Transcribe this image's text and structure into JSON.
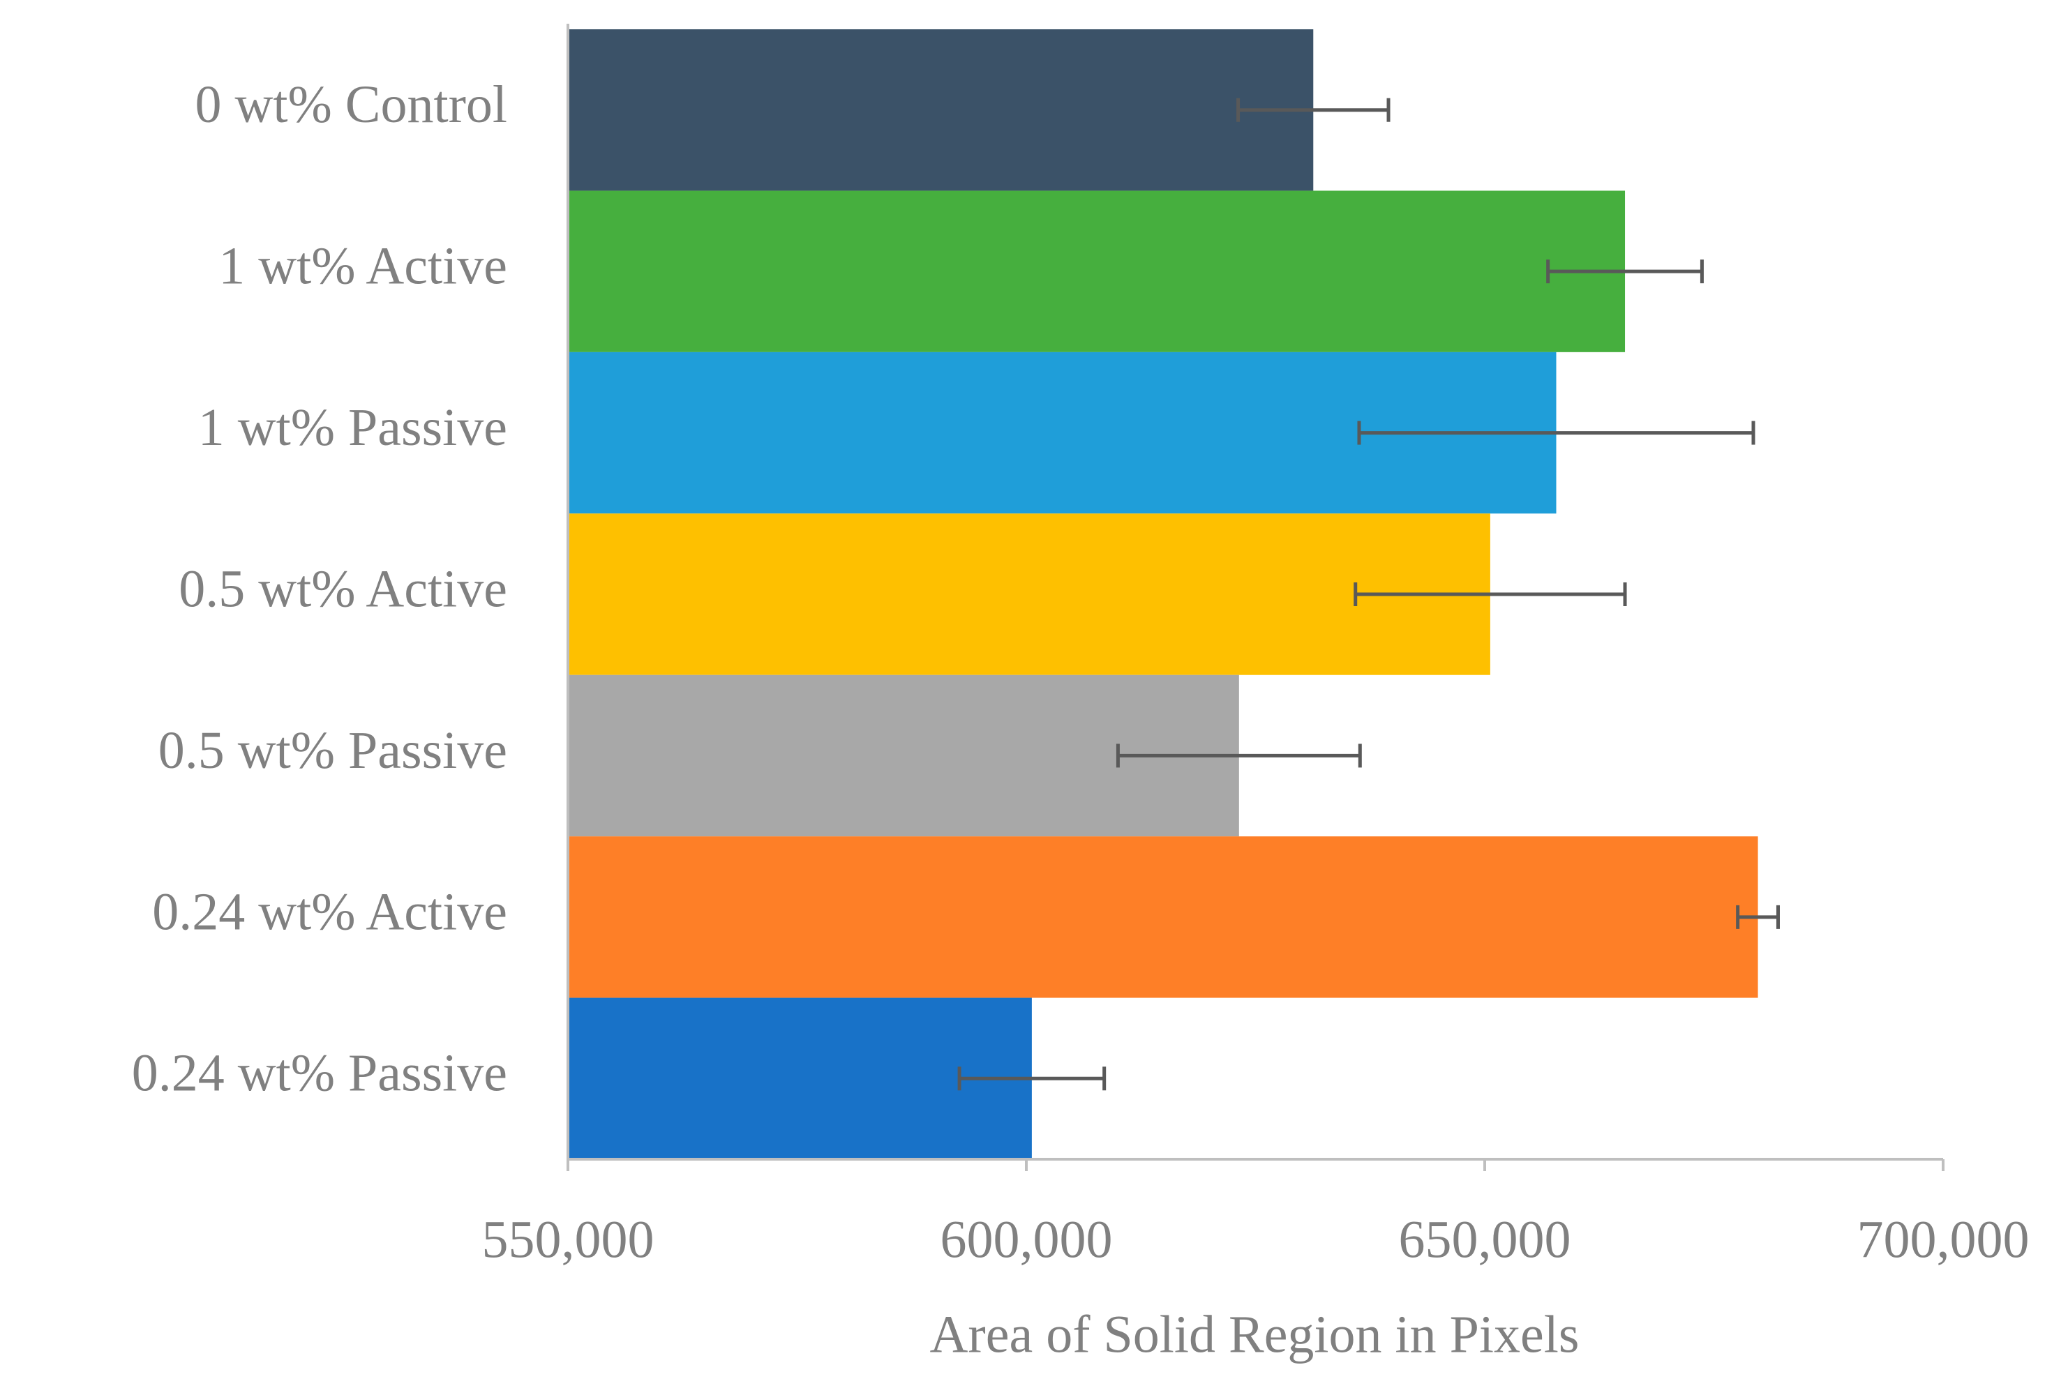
{
  "chart_data": {
    "type": "hbar",
    "categories": [
      "0 wt% Control",
      "1 wt% Active",
      "1 wt% Passive",
      "0.5 wt% Active",
      "0.5 wt% Passive",
      "0.24 wt% Active",
      "0.24 wt% Passive"
    ],
    "values": [
      631300,
      665300,
      657800,
      650600,
      623200,
      679800,
      600600
    ],
    "errors": [
      8200,
      8400,
      21500,
      14700,
      13200,
      2200,
      7900
    ],
    "colors": [
      "#3b5268",
      "#46af3e",
      "#1f9ed9",
      "#fec000",
      "#a8a8a8",
      "#fe7f27",
      "#1872c8"
    ],
    "xlabel": "Area of Solid Region in Pixels",
    "xlim": [
      550000,
      700000
    ],
    "xticks": [
      {
        "value": 550000,
        "label": "550,000"
      },
      {
        "value": 600000,
        "label": "600,000"
      },
      {
        "value": 650000,
        "label": "650,000"
      },
      {
        "value": 700000,
        "label": "700,000"
      }
    ]
  }
}
